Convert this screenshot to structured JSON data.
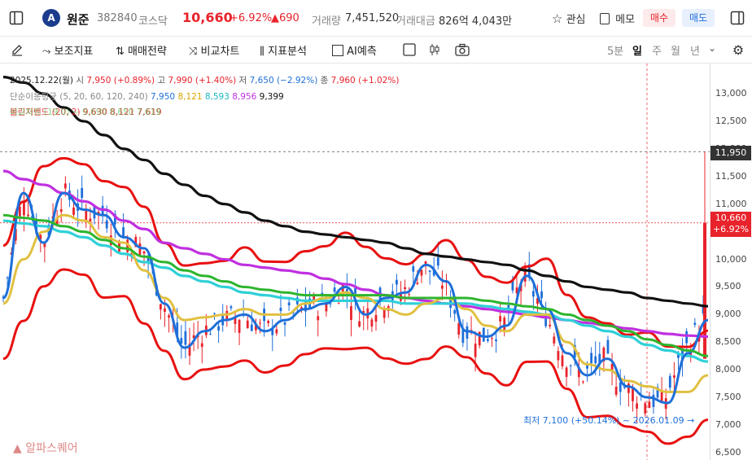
{
  "header": {
    "stock_name": "원준",
    "stock_code": "382840",
    "market": "코스닥",
    "price": "10,660",
    "change_pct": "+6.92%",
    "change_abs": "▲690",
    "volume_label": "거래량",
    "volume": "7,451,520",
    "amount_label": "거래대금",
    "amount": "826억 4,043만",
    "watch_label": "관심",
    "memo_label": "메모",
    "buy_label": "매수",
    "sell_label": "매도"
  },
  "toolbar": {
    "aux_indicator": "보조지표",
    "trade_strategy": "매매전략",
    "compare_chart": "비교차트",
    "indicator_analysis": "지표분석",
    "ai_forecast": "AI예측",
    "timeframes": [
      "5분",
      "일",
      "주",
      "월",
      "년"
    ],
    "active_timeframe": "일"
  },
  "ohlc": {
    "date": "2025.12.22(월)",
    "open_label": "시",
    "open": "7,950 (+0.89%)",
    "high_label": "고",
    "high": "7,990 (+1.40%)",
    "low_label": "저",
    "low": "7,650 (−2.92%)",
    "close_label": "종",
    "close": "7,960 (+1.02%)"
  },
  "ma": {
    "label": "단순이동평균 (5, 20, 60, 120, 240)",
    "values": [
      "7,950",
      "8,121",
      "8,593",
      "8,956",
      "9,399"
    ],
    "colors": [
      "#1e6fd9",
      "#e0b400",
      "#27c4c8",
      "#c030e0",
      "#111111"
    ]
  },
  "bollinger": {
    "label": "볼린저밴드 (20, 2) 9,630 8,121 7,619",
    "overlap_text": "비교차트 (19,0) ~ 9,690 8,650 7,619"
  },
  "axis": {
    "ticks": [
      "13,000",
      "12,500",
      "12,000",
      "11,500",
      "11,000",
      "10,500",
      "10,000",
      "9,500",
      "9,000",
      "8,500",
      "8,000",
      "7,500",
      "7,000",
      "6,500"
    ],
    "high_marker": "11,950",
    "current_price": "10,660",
    "current_change": "+6.92%"
  },
  "annotation": {
    "low_note": "최저 7,100 (+50.14%) ~ 2026.01.09 →"
  },
  "watermark": "알파스퀘어",
  "colors": {
    "up": "#e8232b",
    "down": "#1e6fd9",
    "ma5": "#1e6fd9",
    "ma20": "#e0c040",
    "ma60": "#2fd0d8",
    "ma120": "#c030e0",
    "ma240": "#111111",
    "bb": "#e81010",
    "bb_mid": "#2db52d"
  },
  "chart_data": {
    "type": "line",
    "ylim": [
      6500,
      13300
    ],
    "price_range": {
      "min_visible": 7100,
      "max_visible": 11950
    },
    "series": [
      {
        "name": "5",
        "values": [
          9300,
          11200,
          10300,
          11200,
          10900,
          10800,
          10400,
          10200,
          9200,
          8400,
          8700,
          8900,
          9000,
          8700,
          8900,
          9100,
          9200,
          9500,
          9000,
          9300,
          9400,
          9900,
          9600,
          8700,
          8600,
          8800,
          9700,
          9100,
          8300,
          7900,
          8200,
          7700,
          7500,
          7400,
          8300,
          8900
        ]
      },
      {
        "name": "20",
        "values": [
          9200,
          10000,
          10500,
          10800,
          10700,
          10400,
          10300,
          9800,
          9300,
          8900,
          8950,
          9000,
          9100,
          9000,
          9000,
          9200,
          9300,
          9400,
          9300,
          9100,
          9000,
          9200,
          9300,
          9100,
          8800,
          8700,
          9000,
          9000,
          8500,
          8100,
          8000,
          7800,
          7700,
          7600,
          7600,
          7900
        ]
      },
      {
        "name": "60",
        "values": [
          10700,
          10650,
          10600,
          10500,
          10400,
          10250,
          10100,
          9950,
          9850,
          9700,
          9600,
          9500,
          9400,
          9350,
          9300,
          9250,
          9250,
          9250,
          9250,
          9250,
          9200,
          9200,
          9200,
          9200,
          9150,
          9100,
          9050,
          9000,
          8900,
          8800,
          8700,
          8600,
          8450,
          8350,
          8250,
          8150
        ]
      },
      {
        "name": "120",
        "values": [
          11600,
          11450,
          11350,
          11200,
          11050,
          10900,
          10700,
          10550,
          10300,
          10200,
          10100,
          10000,
          9900,
          9850,
          9800,
          9750,
          9650,
          9550,
          9450,
          9350,
          9300,
          9250,
          9200,
          9150,
          9100,
          9050,
          9000,
          8950,
          8900,
          8850,
          8800,
          8750,
          8700,
          8650,
          8620,
          8600
        ]
      },
      {
        "name": "240",
        "values": [
          13300,
          13200,
          13000,
          12750,
          12500,
          12250,
          12000,
          11800,
          11550,
          11350,
          11150,
          11000,
          10850,
          10700,
          10600,
          10500,
          10450,
          10400,
          10350,
          10300,
          10200,
          10100,
          10050,
          10000,
          9950,
          9900,
          9800,
          9700,
          9600,
          9500,
          9450,
          9400,
          9300,
          9250,
          9200,
          9150
        ]
      }
    ]
  }
}
